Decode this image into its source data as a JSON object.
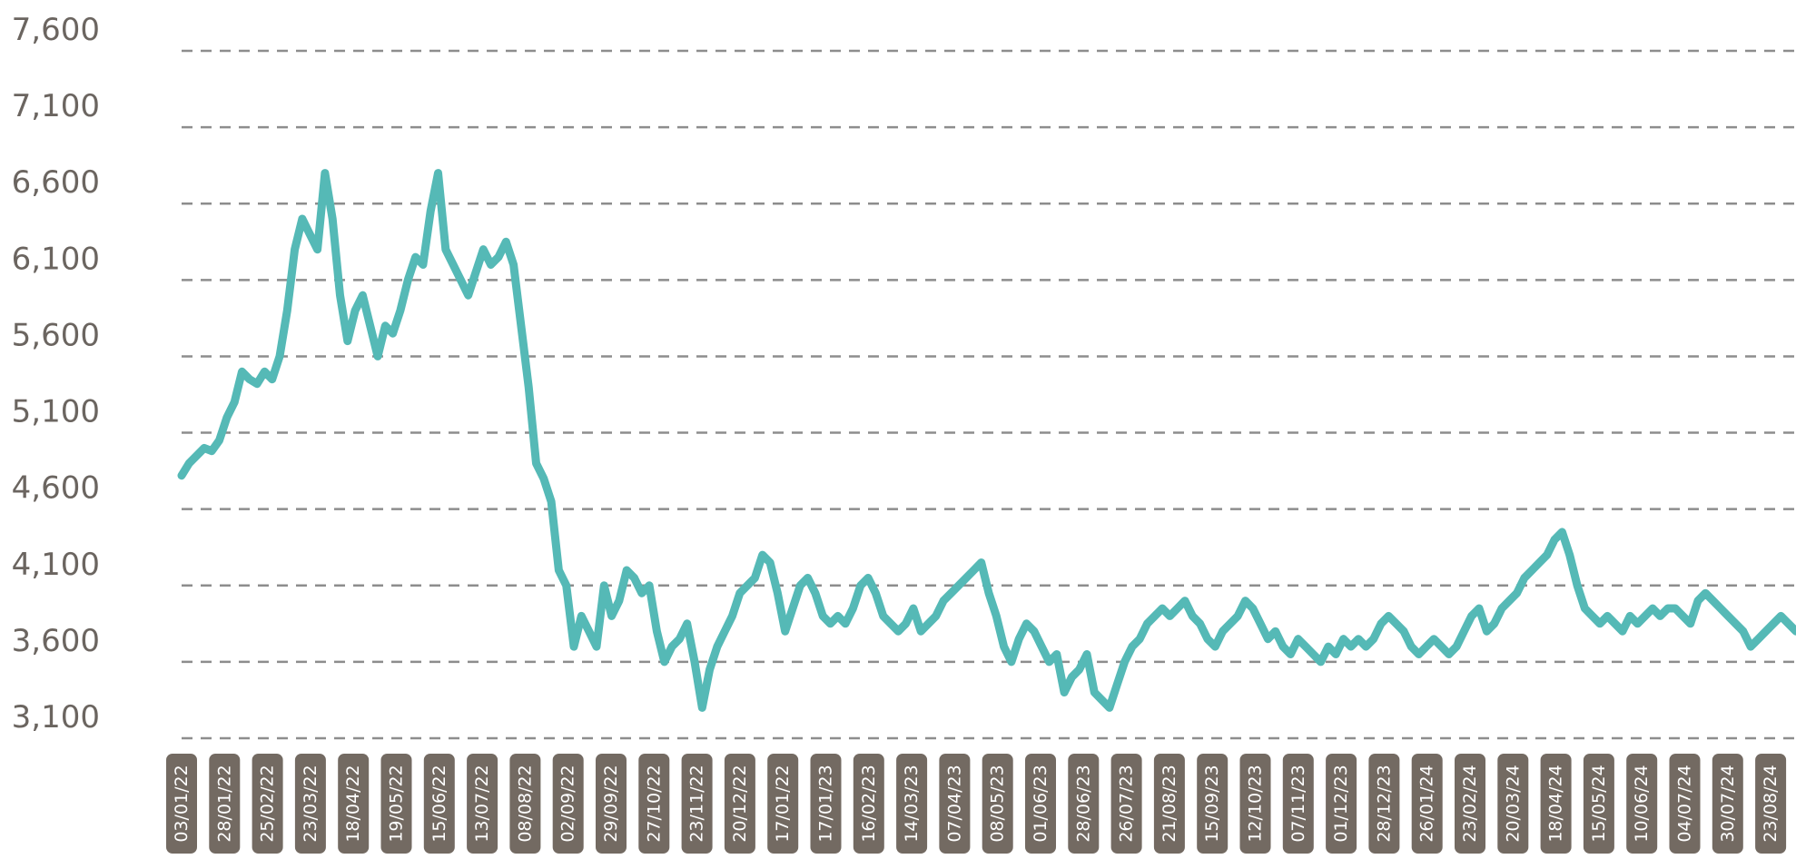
{
  "chart_data": {
    "type": "line",
    "title": "",
    "xlabel": "",
    "ylabel": "",
    "ylim": [
      3100,
      7600
    ],
    "yticks": [
      "7,600",
      "7,100",
      "6,600",
      "6,100",
      "5,600",
      "5,100",
      "4,600",
      "4,100",
      "3,600",
      "3,100"
    ],
    "grid": true,
    "line_color": "#55b9b6",
    "tick_box_color": "#736a62",
    "tick_label_color": "#6b6560",
    "grid_color": "#8d8d8d",
    "x_tick_labels": [
      "03/01/22",
      "28/01/22",
      "25/02/22",
      "23/03/22",
      "18/04/22",
      "19/05/22",
      "15/06/22",
      "13/07/22",
      "08/08/22",
      "02/09/22",
      "29/09/22",
      "27/10/22",
      "23/11/22",
      "20/12/22",
      "17/01/22",
      "17/01/23",
      "16/02/23",
      "14/03/23",
      "07/04/23",
      "08/05/23",
      "01/06/23",
      "28/06/23",
      "26/07/23",
      "21/08/23",
      "15/09/23",
      "12/10/23",
      "07/11/23",
      "01/12/23",
      "28/12/23",
      "26/01/24",
      "23/02/24",
      "20/03/24",
      "18/04/24",
      "15/05/24",
      "10/06/24",
      "04/07/24",
      "30/07/24",
      "23/08/24"
    ],
    "series": [
      {
        "values": [
          4820,
          4900,
          4950,
          5000,
          4980,
          5050,
          5200,
          5300,
          5500,
          5450,
          5420,
          5500,
          5450,
          5600,
          5900,
          6300,
          6500,
          6400,
          6300,
          6800,
          6500,
          6000,
          5700,
          5900,
          6000,
          5800,
          5600,
          5800,
          5750,
          5900,
          6100,
          6250,
          6200,
          6550,
          6800,
          6300,
          6200,
          6100,
          6000,
          6150,
          6300,
          6200,
          6250,
          6350,
          6200,
          5800,
          5400,
          4900,
          4800,
          4650,
          4200,
          4100,
          3700,
          3900,
          3800,
          3700,
          4100,
          3900,
          4000,
          4200,
          4150,
          4050,
          4100,
          3800,
          3600,
          3700,
          3750,
          3850,
          3600,
          3300,
          3550,
          3700,
          3800,
          3900,
          4050,
          4100,
          4150,
          4300,
          4250,
          4050,
          3800,
          3950,
          4100,
          4150,
          4050,
          3900,
          3850,
          3900,
          3850,
          3950,
          4100,
          4150,
          4050,
          3900,
          3850,
          3800,
          3850,
          3950,
          3800,
          3850,
          3900,
          4000,
          4050,
          4100,
          4150,
          4200,
          4250,
          4050,
          3900,
          3700,
          3600,
          3750,
          3850,
          3800,
          3700,
          3600,
          3650,
          3400,
          3500,
          3550,
          3650,
          3400,
          3350,
          3300,
          3450,
          3600,
          3700,
          3750,
          3850,
          3900,
          3950,
          3900,
          3950,
          4000,
          3900,
          3850,
          3750,
          3700,
          3800,
          3850,
          3900,
          4000,
          3950,
          3850,
          3750,
          3800,
          3700,
          3650,
          3750,
          3700,
          3650,
          3600,
          3700,
          3650,
          3750,
          3700,
          3750,
          3700,
          3750,
          3850,
          3900,
          3850,
          3800,
          3700,
          3650,
          3700,
          3750,
          3700,
          3650,
          3700,
          3800,
          3900,
          3950,
          3800,
          3850,
          3950,
          4000,
          4050,
          4150,
          4200,
          4250,
          4300,
          4400,
          4450,
          4300,
          4100,
          3950,
          3900,
          3850,
          3900,
          3850,
          3800,
          3900,
          3850,
          3900,
          3950,
          3900,
          3950,
          3950,
          3900,
          3850,
          4000,
          4050,
          4000,
          3950,
          3900,
          3850,
          3800,
          3700,
          3750,
          3800,
          3850,
          3900,
          3850,
          3800
        ]
      }
    ]
  }
}
